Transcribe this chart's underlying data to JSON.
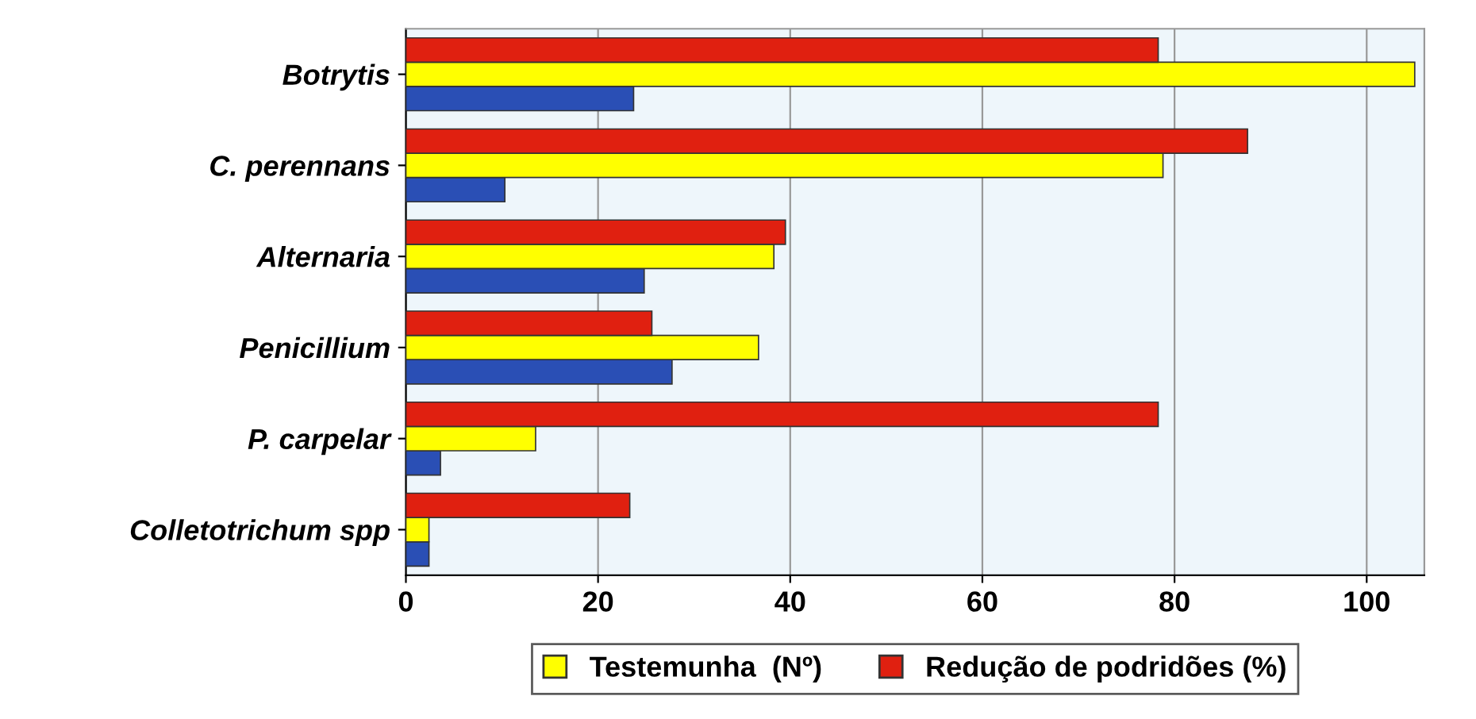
{
  "chart_data": {
    "type": "bar",
    "orientation": "horizontal",
    "categories": [
      "Botrytis",
      "C. perennans",
      "Alternaria",
      "Penicillium",
      "P. carpelar",
      "Colletotrichum spp"
    ],
    "series": [
      {
        "color": "#2a4fb5",
        "values": [
          23.7,
          10.3,
          24.8,
          27.7,
          3.6,
          2.4
        ]
      },
      {
        "name": "Testemunha  (Nº)",
        "color": "#ffff00",
        "values": [
          105,
          78.8,
          38.3,
          36.7,
          13.5,
          2.4
        ]
      },
      {
        "name": "Redução de podridões (%)",
        "color": "#e02010",
        "values": [
          78.3,
          87.6,
          39.5,
          25.6,
          78.3,
          23.3
        ]
      }
    ],
    "xlim": [
      0,
      106
    ],
    "xticks": [
      0,
      20,
      40,
      60,
      80,
      100
    ],
    "grid": "x",
    "legend": "bottom"
  }
}
